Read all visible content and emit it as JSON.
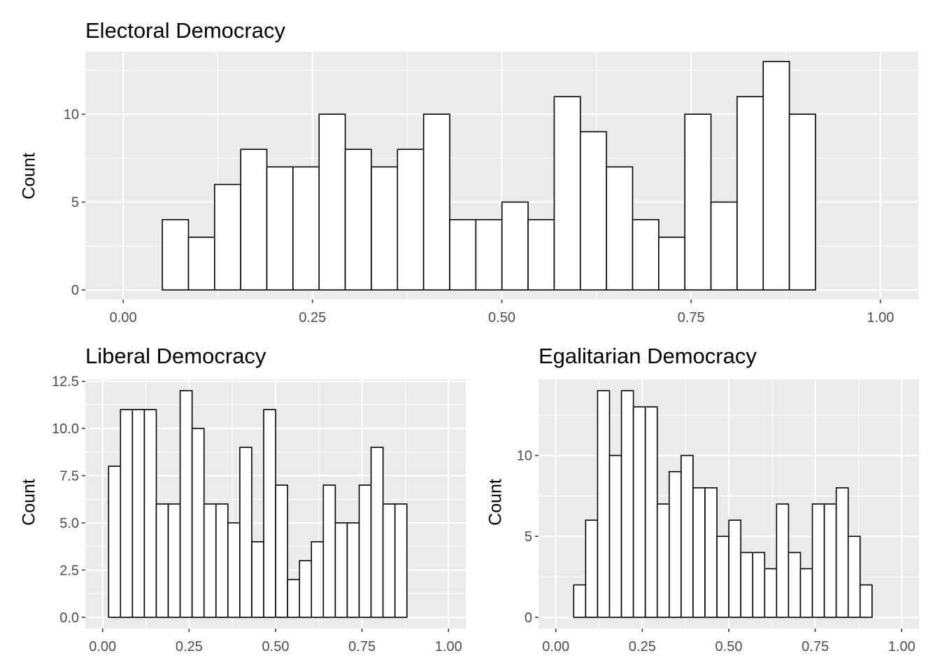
{
  "chart_data": [
    {
      "type": "bar",
      "title": "Electoral Democracy",
      "xlabel": "",
      "ylabel": "Count",
      "xlim": [
        -0.05,
        1.05
      ],
      "ylim": [
        -0.55,
        13.55
      ],
      "x_ticks": [
        0,
        0.25,
        0.5,
        0.75,
        1
      ],
      "x_tick_labels": [
        "0.00",
        "0.25",
        "0.50",
        "0.75",
        "1.00"
      ],
      "y_ticks": [
        0,
        5,
        10
      ],
      "y_tick_labels": [
        "0",
        "5",
        "10"
      ],
      "bin_start": 0.0172,
      "bin_width": 0.0345,
      "values": [
        0,
        4,
        3,
        6,
        8,
        7,
        7,
        10,
        8,
        7,
        8,
        10,
        4,
        4,
        5,
        4,
        11,
        9,
        7,
        4,
        3,
        10,
        5,
        11,
        13,
        10,
        0,
        0,
        0,
        0,
        0,
        0,
        0,
        0,
        0,
        0,
        0,
        0
      ],
      "grid": true,
      "fill": "#ffffff",
      "stroke": "#000000",
      "panel_background": "#ebebeb"
    },
    {
      "type": "bar",
      "title": "Liberal Democracy",
      "xlabel": "",
      "ylabel": "Count",
      "xlim": [
        -0.05,
        1.05
      ],
      "ylim": [
        -0.6,
        12.6
      ],
      "x_ticks": [
        0,
        0.25,
        0.5,
        0.75,
        1
      ],
      "x_tick_labels": [
        "0.00",
        "0.25",
        "0.50",
        "0.75",
        "1.00"
      ],
      "y_ticks": [
        0,
        2.5,
        5,
        7.5,
        10,
        12.5
      ],
      "y_tick_labels": [
        "0.0",
        "2.5",
        "5.0",
        "7.5",
        "10.0",
        "12.5"
      ],
      "bin_start": 0.0172,
      "bin_width": 0.0345,
      "values": [
        8,
        11,
        11,
        11,
        6,
        6,
        12,
        10,
        6,
        6,
        5,
        9,
        4,
        11,
        7,
        2,
        3,
        4,
        7,
        5,
        5,
        7,
        9,
        6,
        6,
        0,
        0,
        0
      ],
      "grid": true,
      "fill": "#ffffff",
      "stroke": "#000000",
      "panel_background": "#ebebeb"
    },
    {
      "type": "bar",
      "title": "Egalitarian Democracy",
      "xlabel": "",
      "ylabel": "Count",
      "xlim": [
        -0.05,
        1.05
      ],
      "ylim": [
        -0.7,
        14.7
      ],
      "x_ticks": [
        0,
        0.25,
        0.5,
        0.75,
        1
      ],
      "x_tick_labels": [
        "0.00",
        "0.25",
        "0.50",
        "0.75",
        "1.00"
      ],
      "y_ticks": [
        0,
        5,
        10
      ],
      "y_tick_labels": [
        "0",
        "5",
        "10"
      ],
      "bin_start": 0.0172,
      "bin_width": 0.0345,
      "values": [
        0,
        2,
        6,
        14,
        10,
        14,
        13,
        13,
        7,
        9,
        10,
        8,
        8,
        5,
        6,
        4,
        4,
        3,
        7,
        4,
        3,
        7,
        7,
        8,
        5,
        2,
        0,
        0,
        0
      ],
      "grid": true,
      "fill": "#ffffff",
      "stroke": "#000000",
      "panel_background": "#ebebeb"
    }
  ]
}
